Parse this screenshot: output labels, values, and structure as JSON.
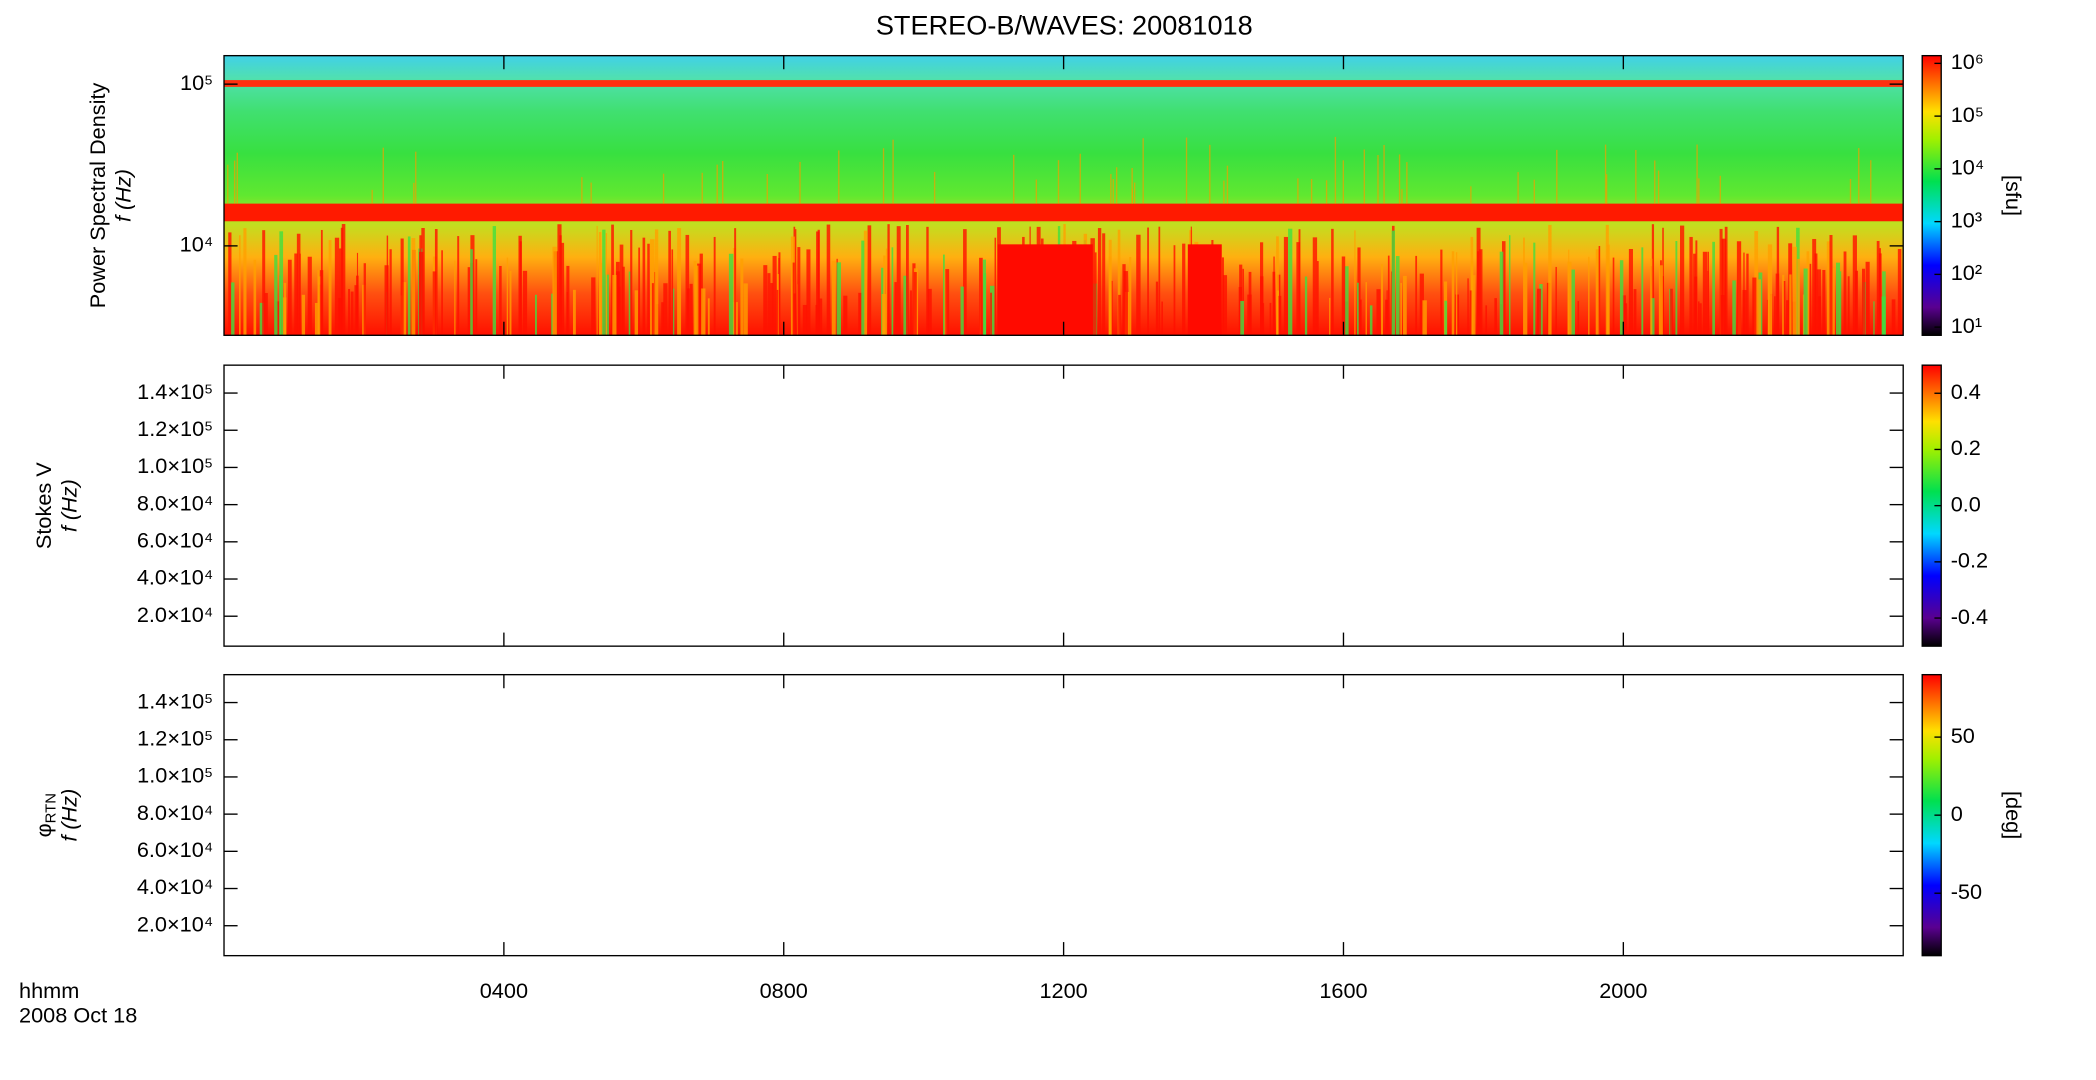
{
  "chart_data": [
    {
      "type": "spectrogram",
      "title": "STEREO-B/WAVES: 20081018",
      "ylabel": "Power Spectral Density",
      "ylabel2": "f (Hz)",
      "log_y": true,
      "ylim": [
        2800,
        150000
      ],
      "yticks": [
        {
          "value": 10000,
          "label": "10⁴"
        },
        {
          "value": 100000,
          "label": "10⁵"
        }
      ],
      "colorbar": {
        "label": "[sfu]",
        "log": true,
        "lim": [
          7,
          1400000
        ],
        "ticks": [
          {
            "value": 10,
            "label": "10¹"
          },
          {
            "value": 100,
            "label": "10²"
          },
          {
            "value": 1000,
            "label": "10³"
          },
          {
            "value": 10000,
            "label": "10⁴"
          },
          {
            "value": 100000,
            "label": "10⁵"
          },
          {
            "value": 1000000,
            "label": "10⁶"
          }
        ]
      }
    },
    {
      "type": "spectrogram",
      "ylabel": "Stokes V",
      "ylabel2": "f (Hz)",
      "log_y": false,
      "ylim": [
        3900,
        155000
      ],
      "yticks": [
        {
          "value": 20000,
          "label": "2.0×10⁴"
        },
        {
          "value": 40000,
          "label": "4.0×10⁴"
        },
        {
          "value": 60000,
          "label": "6.0×10⁴"
        },
        {
          "value": 80000,
          "label": "8.0×10⁴"
        },
        {
          "value": 100000,
          "label": "1.0×10⁵"
        },
        {
          "value": 120000,
          "label": "1.2×10⁵"
        },
        {
          "value": 140000,
          "label": "1.4×10⁵"
        }
      ],
      "colorbar": {
        "log": false,
        "lim": [
          -0.5,
          0.5
        ],
        "ticks": [
          -0.4,
          -0.2,
          {
            "value": 0,
            "label": "0.0"
          },
          0.2,
          0.4
        ]
      }
    },
    {
      "type": "spectrogram",
      "ylabel": "φ",
      "ylabel_sub": "RTN",
      "ylabel2": "f (Hz)",
      "log_y": false,
      "ylim": [
        3900,
        155000
      ],
      "yticks": [
        {
          "value": 20000,
          "label": "2.0×10⁴"
        },
        {
          "value": 40000,
          "label": "4.0×10⁴"
        },
        {
          "value": 60000,
          "label": "6.0×10⁴"
        },
        {
          "value": 80000,
          "label": "8.0×10⁴"
        },
        {
          "value": 100000,
          "label": "1.0×10⁵"
        },
        {
          "value": 120000,
          "label": "1.2×10⁵"
        },
        {
          "value": 140000,
          "label": "1.4×10⁵"
        }
      ],
      "colorbar": {
        "label": "[deg]",
        "log": false,
        "lim": [
          -90,
          90
        ],
        "ticks": [
          -50,
          0,
          50
        ]
      },
      "xlabel": "hhmm",
      "xsublabel": "2008 Oct 18",
      "xlim": [
        0,
        24
      ],
      "xticks": [
        {
          "value": 4,
          "label": "0400"
        },
        {
          "value": 8,
          "label": "0800"
        },
        {
          "value": 12,
          "label": "1200"
        },
        {
          "value": 16,
          "label": "1600"
        },
        {
          "value": 20,
          "label": "2000"
        }
      ]
    }
  ]
}
